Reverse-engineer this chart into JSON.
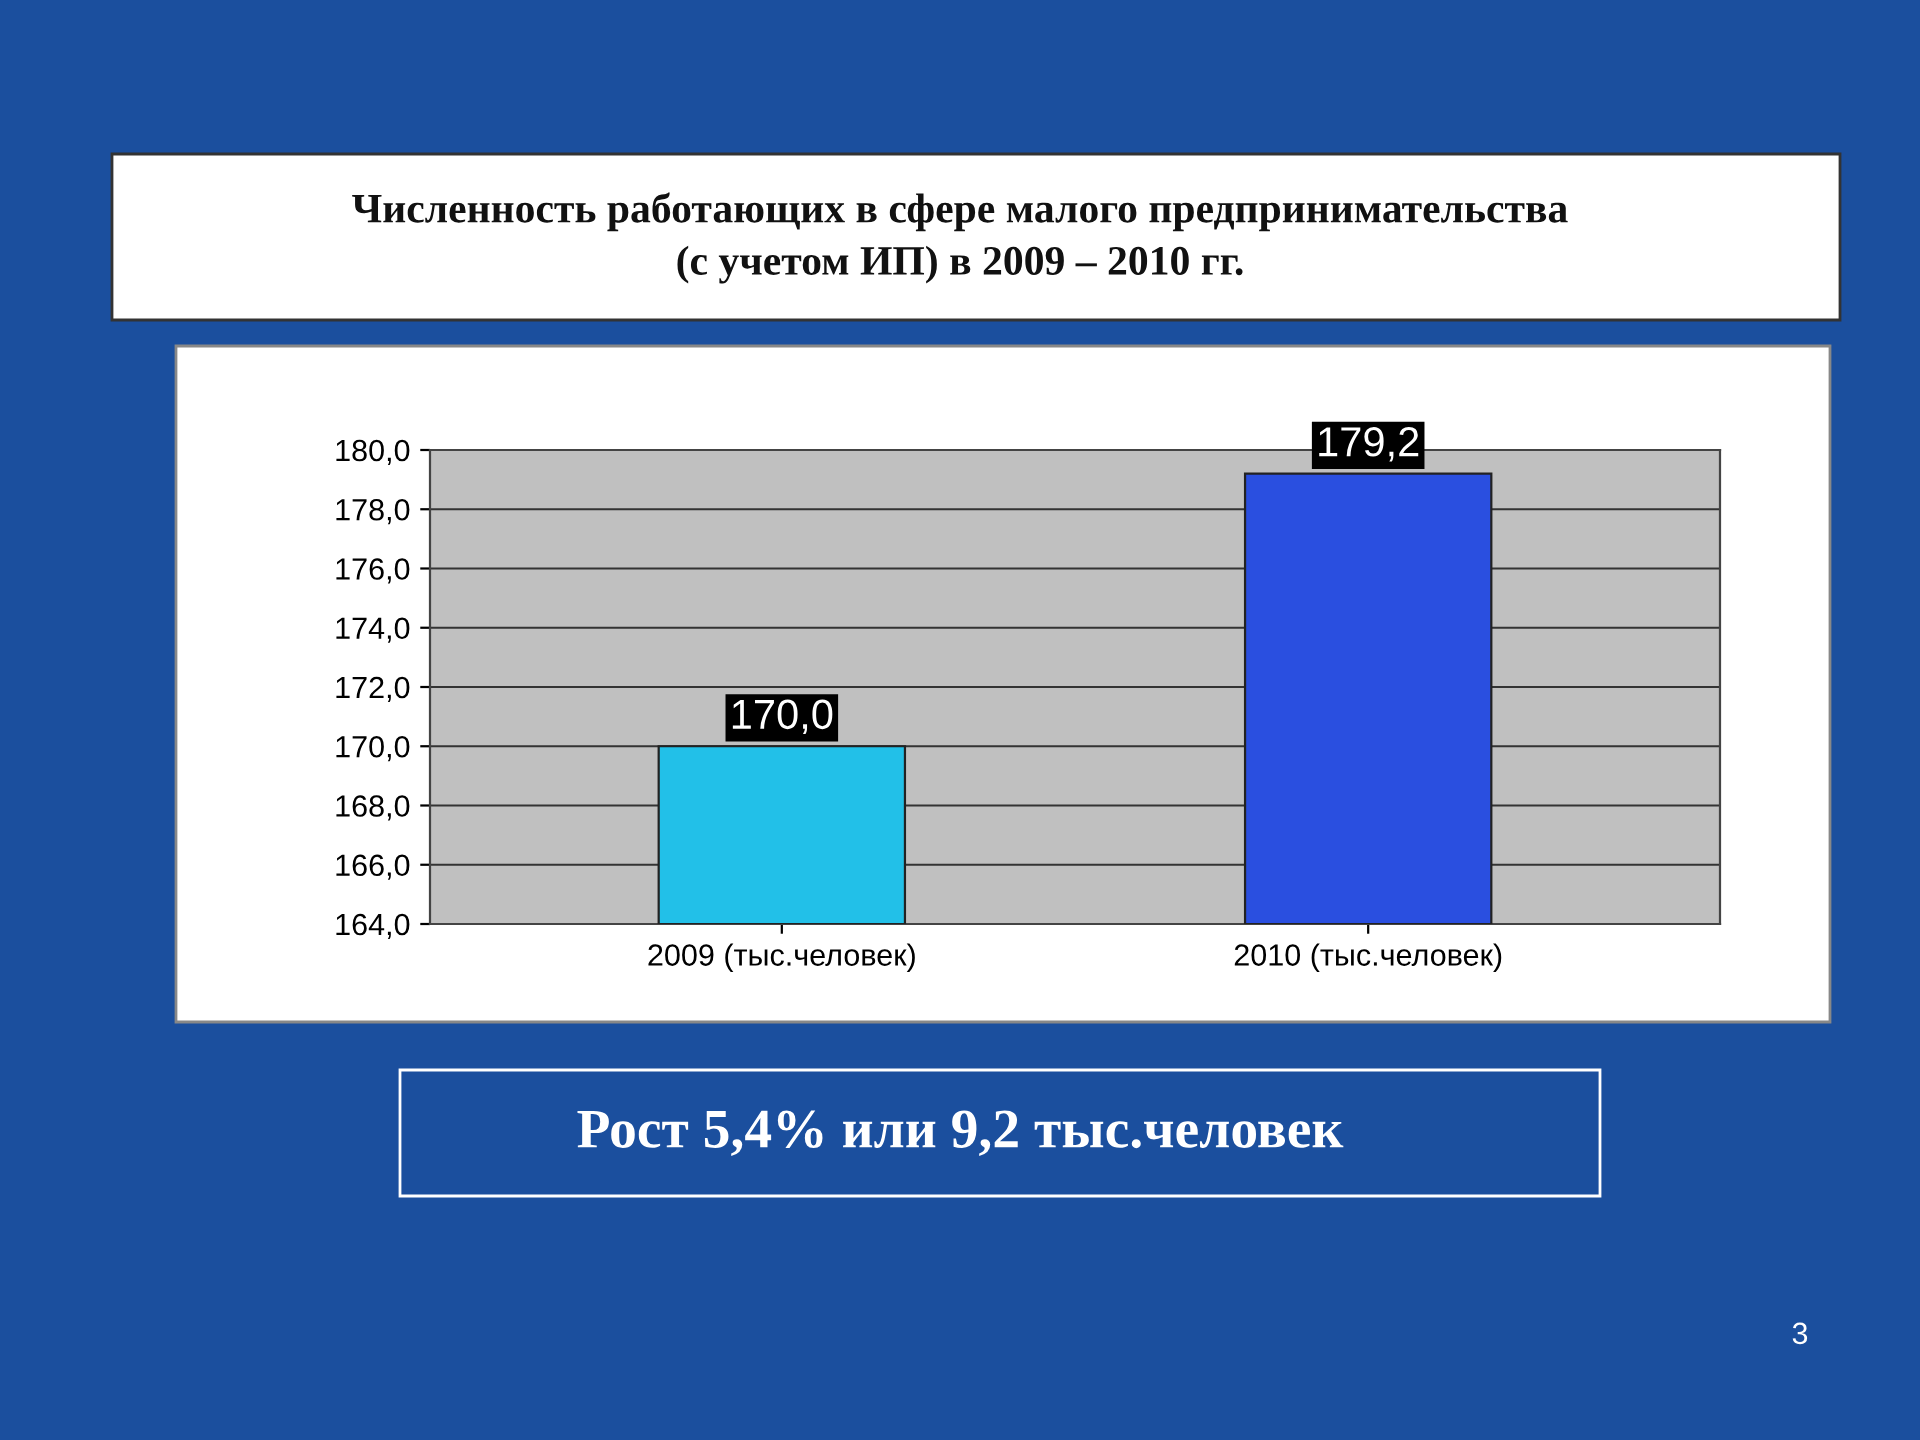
{
  "chart_data": {
    "type": "bar",
    "title": "Численность работающих в сфере малого предпринимательства\n(с учетом ИП) в 2009 – 2010 гг.",
    "categories": [
      "2009 (тыс.человек)",
      "2010 (тыс.человек)"
    ],
    "values": [
      170.0,
      179.2
    ],
    "colors": [
      "#22c0e8",
      "#2a4fe0"
    ],
    "value_labels": [
      "170,0",
      "179,2"
    ],
    "ylim": [
      164,
      180
    ],
    "yticks": [
      {
        "value": 164,
        "label": "164,0"
      },
      {
        "value": 166,
        "label": "166,0"
      },
      {
        "value": 168,
        "label": "168,0"
      },
      {
        "value": 170,
        "label": "170,0"
      },
      {
        "value": 172,
        "label": "172,0"
      },
      {
        "value": 174,
        "label": "174,0"
      },
      {
        "value": 176,
        "label": "176,0"
      },
      {
        "value": 178,
        "label": "178,0"
      },
      {
        "value": 180,
        "label": "180,0"
      }
    ],
    "grid": "y",
    "annotations": [
      "Рост 5,4% или 9,2 тыс.человек",
      "3"
    ]
  }
}
